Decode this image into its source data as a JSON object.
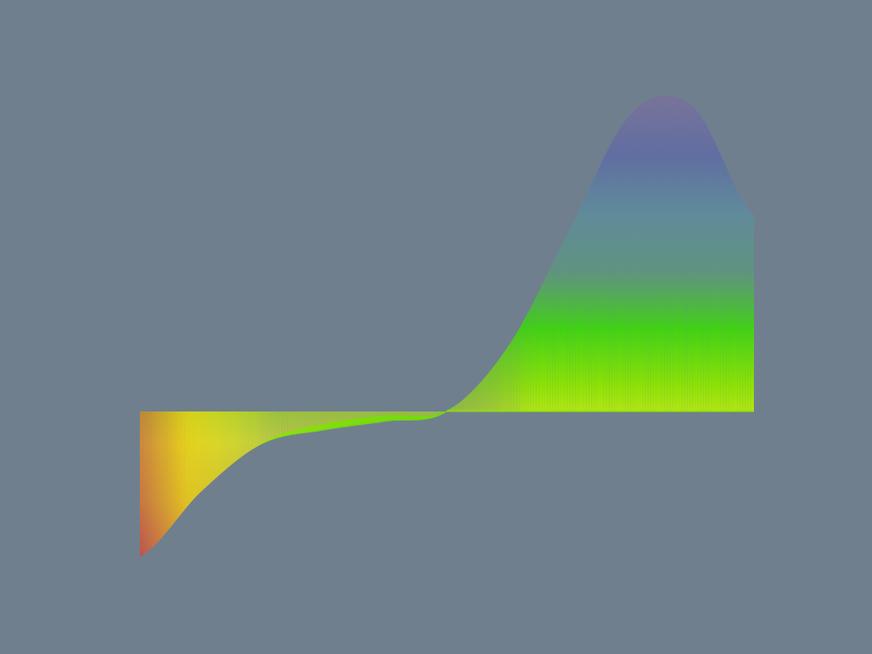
{
  "scene": {
    "background_color": "#707f8e",
    "object": "rendered-surface-ribbon",
    "colormap": [
      "#c0504d",
      "#e8c81a",
      "#e6f01a",
      "#8ee600",
      "#3ed60e",
      "#5a9a7a",
      "#5a8fa0",
      "#5a68a8",
      "#7a6e9e"
    ],
    "curve_samples": {
      "x": [
        0.0,
        0.1,
        0.2,
        0.3,
        0.4,
        0.5,
        0.6,
        0.7,
        0.8,
        0.9,
        1.0
      ],
      "y": [
        -1.0,
        -0.55,
        -0.22,
        -0.12,
        -0.06,
        0.0,
        0.45,
        1.25,
        2.05,
        2.1,
        1.35
      ]
    },
    "baseline": 0.0
  }
}
